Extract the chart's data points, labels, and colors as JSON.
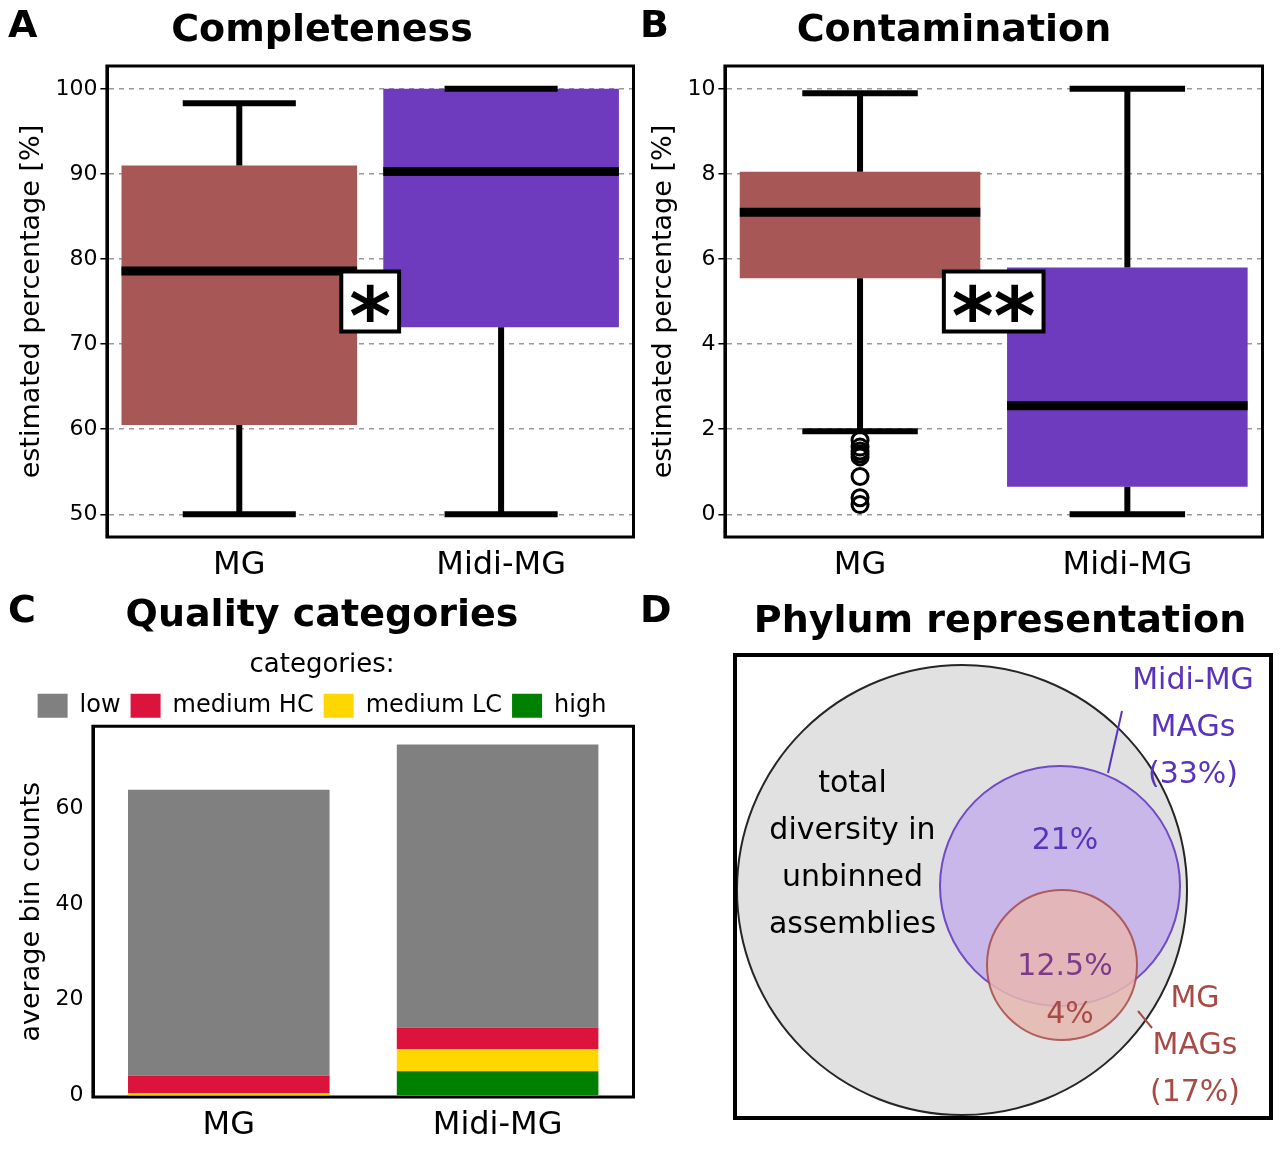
{
  "chart_data": [
    {
      "type": "box",
      "title": "Completeness",
      "ylabel": "estimated percentage [%]",
      "categories": [
        "MG",
        "Midi-MG"
      ],
      "colors": [
        "#a85757",
        "#6e3bbf"
      ],
      "boxes": [
        {
          "low": 50,
          "q1": 60.5,
          "median": 78.6,
          "q3": 91,
          "high": 98.3
        },
        {
          "low": 50,
          "q1": 72,
          "median": 90.3,
          "q3": 100,
          "high": 100
        }
      ],
      "ylim": [
        47.5,
        102.5
      ],
      "yticks": [
        50,
        60,
        70,
        80,
        90,
        100
      ],
      "grid": "y",
      "line_style": "dashed",
      "annotations": [
        "A",
        "*"
      ]
    },
    {
      "type": "box",
      "title": "Contamination",
      "ylabel": "estimated percentage [%]",
      "categories": [
        "MG",
        "Midi-MG"
      ],
      "colors": [
        "#a85757",
        "#6e3bbf"
      ],
      "boxes": [
        {
          "low": 1.95,
          "q1": 5.55,
          "median": 7.1,
          "q3": 8.05,
          "high": 9.9,
          "outliers": [
            1.74,
            1.58,
            1.49,
            1.42,
            1.35,
            0.89,
            0.39,
            0.23
          ]
        },
        {
          "low": 0,
          "q1": 0.65,
          "median": 2.55,
          "q3": 5.8,
          "high": 10
        }
      ],
      "ylim": [
        -0.5,
        10.5
      ],
      "yticks": [
        0,
        2,
        4,
        6,
        8,
        10
      ],
      "grid": "y",
      "line_style": "dashed",
      "annotations": [
        "B",
        "**"
      ]
    },
    {
      "type": "bar",
      "stacked": true,
      "title": "Quality categories",
      "ylabel": "average bin counts",
      "legend_title": "categories:",
      "legend": "top",
      "categories": [
        "MG",
        "Midi-MG"
      ],
      "series": [
        {
          "name": "high",
          "color": "#008000",
          "values": [
            0,
            5.1
          ]
        },
        {
          "name": "medium LC",
          "color": "#ffd700",
          "values": [
            0.5,
            4.6
          ]
        },
        {
          "name": "medium HC",
          "color": "#dc143c",
          "values": [
            3.7,
            4.5
          ]
        },
        {
          "name": "low",
          "color": "#808080",
          "values": [
            59.6,
            59
          ]
        }
      ],
      "ylim": [
        0,
        76.7
      ],
      "yticks": [
        0,
        20,
        40,
        60
      ],
      "annotations": [
        "C"
      ]
    },
    {
      "type": "other",
      "title": "Phylum representation",
      "colors": [
        "#dcdcdc",
        "#c4b0ea",
        "#e8b8b2"
      ],
      "annotations": [
        "D",
        "total diversity in unbinned assemblies",
        "Midi-MG MAGs (33%)",
        "21%",
        "12.5%",
        "4%",
        "MG MAGs (17%)"
      ]
    }
  ]
}
